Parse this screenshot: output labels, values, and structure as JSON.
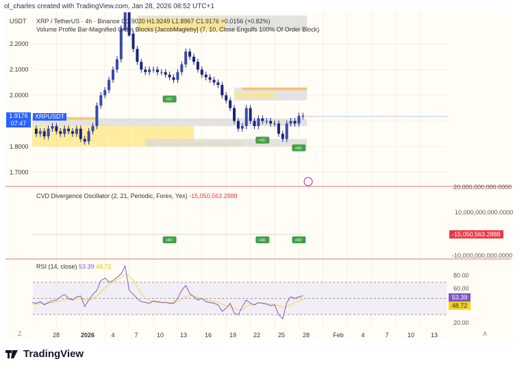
{
  "credit": "ol_charles created with TradingView.com, Jan 28, 2026 08:52 UTC+1",
  "main_pane": {
    "currency": "USDT",
    "symbol_line": "XRP / TetherUS · 4h · Binance",
    "ohlc": {
      "open": "O1.9020",
      "high": "H1.9249",
      "low": "L1.8967",
      "close": "C1.9176",
      "change": "+0.0156 (+0.82%)"
    },
    "indicator": "Volume Profile Bar-Magnified Order Blocks [JacobMagleby] (7, 10, Close Engulfs 100% Of Order Block)",
    "price_label": "1.9176",
    "countdown": "07:47",
    "symbol_tag": "XRPUSDT"
  },
  "cvd_pane": {
    "title": "CVD Divergence Oscillator (2, 21, Periodic, Forex, Yes)",
    "value": "-15,050,563.2888",
    "axis_labels": [
      "20,000,000,000.0000",
      "10,000,000,000.0000",
      "-10,000,000,000.0000"
    ],
    "rd_label": "+RD"
  },
  "rsi_pane": {
    "title": "RSI (14, close)",
    "rsi_value": "53.39",
    "ma_value": "48.72",
    "axis_labels": [
      "80.00",
      "60.00",
      "20.00"
    ]
  },
  "x_axis": {
    "labels": [
      "28",
      "2026",
      "4",
      "7",
      "10",
      "13",
      "16",
      "19",
      "22",
      "25",
      "28",
      "Feb",
      "4",
      "7",
      "10",
      "13"
    ],
    "left_button": "Z",
    "right_button": "A"
  },
  "logo": "TradingView",
  "colors": {
    "up": "#1a237e",
    "down": "#1a237e",
    "rsi": "#7e57c2",
    "rsi_ma": "#f5d76e",
    "label_blue": "#2962ff",
    "cvd_red": "#f23645",
    "rd_green": "#43a047",
    "zone_yellow": "#ffe680",
    "zone_orange": "#ffb74d",
    "zone_gray": "#d9d9d9"
  },
  "chart_data": [
    {
      "type": "candlestick",
      "title": "XRP / TetherUS · 4h · Binance",
      "ylim": [
        1.62,
        2.35
      ],
      "y_ticks": [
        1.7,
        1.8,
        1.9,
        2.0,
        2.1,
        2.2
      ],
      "x_range_days_from_dec25": [
        0,
        50
      ],
      "closes_x_day": [
        0,
        0.5,
        1,
        1.5,
        2,
        2.5,
        3,
        3.5,
        4,
        4.5,
        5,
        5.5,
        6,
        6.5,
        7,
        7.5,
        8,
        8.5,
        9,
        9.5,
        10,
        10.5,
        11,
        11.5,
        12,
        12.5,
        13,
        13.5,
        14,
        14.5,
        15,
        15.5,
        16,
        16.5,
        17,
        17.5,
        18,
        18.5,
        19,
        19.5,
        20,
        20.5,
        21,
        21.5,
        22,
        22.5,
        23,
        23.5,
        24,
        24.5,
        25,
        25.5,
        26,
        26.5,
        27,
        27.5,
        28,
        28.5,
        29,
        29.5,
        30,
        30.5,
        31,
        31.5,
        32,
        32.5,
        33,
        33.5
      ],
      "closes": [
        1.87,
        1.85,
        1.86,
        1.84,
        1.87,
        1.88,
        1.86,
        1.85,
        1.87,
        1.86,
        1.85,
        1.87,
        1.83,
        1.82,
        1.86,
        1.88,
        1.96,
        2.0,
        2.02,
        2.06,
        2.1,
        2.14,
        2.26,
        2.33,
        2.24,
        2.18,
        2.13,
        2.1,
        2.09,
        2.1,
        2.1,
        2.09,
        2.09,
        2.08,
        2.07,
        2.06,
        2.09,
        2.12,
        2.17,
        2.15,
        2.13,
        2.1,
        2.08,
        2.07,
        2.06,
        2.05,
        2.04,
        2.0,
        1.98,
        1.95,
        1.9,
        1.87,
        1.88,
        1.95,
        1.9,
        1.88,
        1.91,
        1.9,
        1.9,
        1.89,
        1.89,
        1.85,
        1.83,
        1.89,
        1.9,
        1.89,
        1.92,
        1.9176
      ]
    },
    {
      "type": "line",
      "title": "CVD Divergence Oscillator (2, 21, Periodic, Forex, Yes)",
      "ylim": [
        -12000000000,
        22000000000
      ],
      "series": [
        {
          "name": "CVD",
          "last": -15050563.2888
        }
      ],
      "markers_x_day": [
        17,
        28.5,
        33
      ]
    },
    {
      "type": "line",
      "title": "RSI (14, close)",
      "ylim": [
        15,
        95
      ],
      "bands": [
        30,
        50,
        70
      ],
      "series": [
        {
          "name": "RSI",
          "values": [
            45,
            44,
            46,
            42,
            45,
            47,
            48,
            52,
            55,
            50,
            48,
            52,
            53,
            40,
            48,
            55,
            60,
            72,
            75,
            70,
            72,
            76,
            80,
            90,
            60,
            55,
            50,
            46,
            45,
            44,
            47,
            46,
            45,
            45,
            44,
            44,
            50,
            60,
            66,
            56,
            52,
            48,
            50,
            46,
            45,
            44,
            42,
            34,
            38,
            44,
            32,
            30,
            40,
            48,
            44,
            42,
            45,
            44,
            43,
            41,
            42,
            30,
            25,
            45,
            52,
            50,
            52,
            53.39
          ]
        },
        {
          "name": "RSI-based MA",
          "values": [
            43,
            43,
            44,
            44,
            44,
            45,
            46,
            47,
            48,
            49,
            49,
            50,
            50,
            48,
            48,
            50,
            53,
            58,
            63,
            67,
            70,
            73,
            76,
            80,
            78,
            72,
            64,
            56,
            50,
            47,
            46,
            45,
            45,
            45,
            45,
            45,
            46,
            49,
            52,
            54,
            53,
            51,
            50,
            49,
            47,
            46,
            45,
            43,
            41,
            40,
            38,
            36,
            36,
            40,
            42,
            43,
            44,
            44,
            44,
            43,
            43,
            41,
            39,
            40,
            42,
            45,
            47,
            48.72
          ]
        }
      ]
    }
  ]
}
